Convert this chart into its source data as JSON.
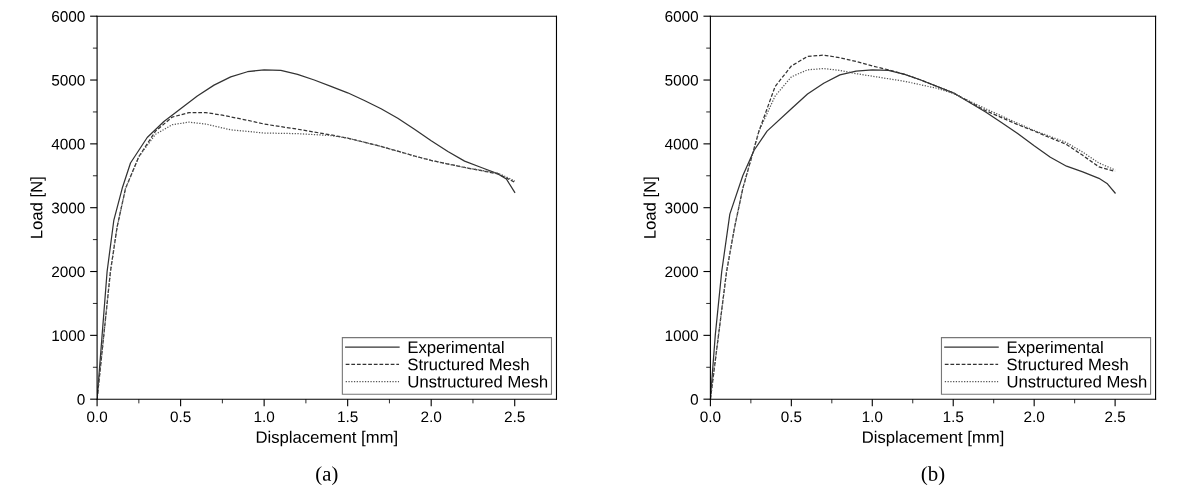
{
  "chart_data": [
    {
      "type": "line",
      "xlabel": "Displacement [mm]",
      "ylabel": "Load [N]",
      "annotations": [
        "(a)"
      ],
      "xlim": [
        0,
        2.75
      ],
      "ylim": [
        0,
        6000
      ],
      "xticks": [
        {
          "value": 0,
          "label": "0.0"
        },
        0.5,
        {
          "value": 1,
          "label": "1.0"
        },
        1.5,
        {
          "value": 2,
          "label": "2.0"
        },
        2.5
      ],
      "yticks": [
        0,
        1000,
        2000,
        3000,
        4000,
        5000,
        6000
      ],
      "grid": false,
      "legend": "bottom right",
      "series": [
        {
          "name": "Experimental",
          "color": "#333333",
          "line_style": "solid",
          "x": [
            0,
            0.03,
            0.06,
            0.1,
            0.15,
            0.2,
            0.3,
            0.4,
            0.5,
            0.6,
            0.7,
            0.8,
            0.9,
            1.0,
            1.1,
            1.2,
            1.3,
            1.4,
            1.5,
            1.6,
            1.7,
            1.8,
            1.9,
            2.0,
            2.1,
            2.2,
            2.3,
            2.4,
            2.45,
            2.5
          ],
          "values": [
            0,
            1000,
            2000,
            2800,
            3300,
            3700,
            4100,
            4350,
            4550,
            4750,
            4920,
            5050,
            5130,
            5160,
            5150,
            5090,
            5000,
            4900,
            4800,
            4680,
            4550,
            4400,
            4230,
            4050,
            3880,
            3730,
            3630,
            3530,
            3450,
            3240
          ]
        },
        {
          "name": "Structured Mesh",
          "color": "#333333",
          "line_style": "dashed",
          "x": [
            0,
            0.04,
            0.08,
            0.12,
            0.17,
            0.25,
            0.35,
            0.45,
            0.55,
            0.65,
            0.75,
            0.9,
            1.0,
            1.2,
            1.4,
            1.5,
            1.7,
            1.9,
            2.0,
            2.2,
            2.4,
            2.5
          ],
          "values": [
            0,
            1000,
            2000,
            2700,
            3300,
            3800,
            4200,
            4420,
            4490,
            4490,
            4450,
            4370,
            4310,
            4230,
            4140,
            4090,
            3960,
            3810,
            3740,
            3630,
            3530,
            3400
          ]
        },
        {
          "name": "Unstructured Mesh",
          "color": "#555555",
          "line_style": "dotted",
          "x": [
            0,
            0.04,
            0.08,
            0.12,
            0.17,
            0.25,
            0.35,
            0.45,
            0.55,
            0.65,
            0.8,
            1.0,
            1.2,
            1.4,
            1.5,
            1.7,
            1.9,
            2.0,
            2.2,
            2.4,
            2.5
          ],
          "values": [
            0,
            1000,
            2000,
            2700,
            3300,
            3800,
            4150,
            4300,
            4340,
            4310,
            4220,
            4170,
            4160,
            4130,
            4090,
            3960,
            3810,
            3740,
            3630,
            3540,
            3420
          ]
        }
      ]
    },
    {
      "type": "line",
      "xlabel": "Displacement [mm]",
      "ylabel": "Load [N]",
      "annotations": [
        "(b)"
      ],
      "xlim": [
        0,
        2.75
      ],
      "ylim": [
        0,
        6000
      ],
      "xticks": [
        {
          "value": 0,
          "label": "0.0"
        },
        0.5,
        {
          "value": 1,
          "label": "1.0"
        },
        1.5,
        {
          "value": 2,
          "label": "2.0"
        },
        2.5
      ],
      "yticks": [
        0,
        1000,
        2000,
        3000,
        4000,
        5000,
        6000
      ],
      "grid": false,
      "legend": "bottom right",
      "series": [
        {
          "name": "Experimental",
          "color": "#333333",
          "line_style": "solid",
          "x": [
            0,
            0.03,
            0.07,
            0.12,
            0.2,
            0.27,
            0.35,
            0.5,
            0.6,
            0.7,
            0.8,
            0.9,
            1.0,
            1.1,
            1.2,
            1.3,
            1.5,
            1.7,
            1.8,
            1.9,
            2.0,
            2.1,
            2.2,
            2.3,
            2.4,
            2.45,
            2.5
          ],
          "values": [
            0,
            1000,
            2000,
            2900,
            3500,
            3900,
            4200,
            4550,
            4780,
            4950,
            5080,
            5140,
            5160,
            5150,
            5090,
            5000,
            4800,
            4500,
            4330,
            4160,
            3970,
            3790,
            3650,
            3560,
            3460,
            3380,
            3230
          ]
        },
        {
          "name": "Structured Mesh",
          "color": "#333333",
          "line_style": "dashed",
          "x": [
            0,
            0.05,
            0.1,
            0.15,
            0.2,
            0.3,
            0.4,
            0.5,
            0.6,
            0.7,
            0.8,
            0.9,
            1.0,
            1.1,
            1.2,
            1.3,
            1.5,
            1.7,
            1.9,
            2.0,
            2.2,
            2.3,
            2.4,
            2.5
          ],
          "values": [
            0,
            1000,
            2000,
            2700,
            3300,
            4200,
            4900,
            5220,
            5370,
            5390,
            5350,
            5290,
            5220,
            5160,
            5090,
            5000,
            4800,
            4520,
            4300,
            4200,
            3990,
            3820,
            3640,
            3570
          ]
        },
        {
          "name": "Unstructured Mesh",
          "color": "#555555",
          "line_style": "dotted",
          "x": [
            0,
            0.05,
            0.1,
            0.15,
            0.2,
            0.3,
            0.4,
            0.5,
            0.6,
            0.7,
            0.8,
            0.9,
            1.0,
            1.2,
            1.4,
            1.5,
            1.7,
            1.9,
            2.0,
            2.2,
            2.3,
            2.4,
            2.5
          ],
          "values": [
            0,
            1000,
            2000,
            2700,
            3300,
            4200,
            4750,
            5050,
            5160,
            5180,
            5150,
            5100,
            5060,
            4980,
            4870,
            4790,
            4550,
            4320,
            4210,
            4020,
            3870,
            3700,
            3590
          ]
        }
      ]
    }
  ]
}
